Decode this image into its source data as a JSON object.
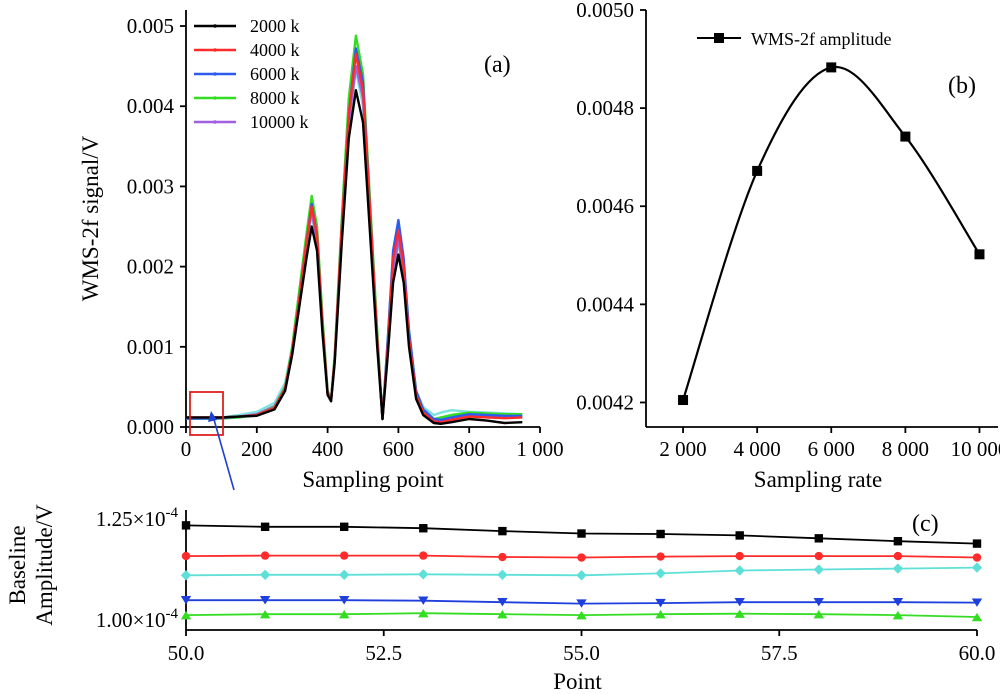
{
  "chart_data": [
    {
      "panel": "(a)",
      "type": "line",
      "xlabel": "Sampling point",
      "ylabel": "WMS-2f signal/V",
      "xlim": [
        0,
        1000
      ],
      "ylim": [
        0,
        0.0052
      ],
      "xticks": [
        0,
        200,
        400,
        600,
        800,
        1000
      ],
      "xtick_labels": [
        "0",
        "200",
        "400",
        "600",
        "800",
        "1 000"
      ],
      "yticks": [
        0,
        0.001,
        0.002,
        0.003,
        0.004,
        0.005
      ],
      "ytick_labels": [
        "0.000",
        "0.001",
        "0.002",
        "0.003",
        "0.004",
        "0.005"
      ],
      "legend_position": "top-left",
      "series": [
        {
          "name": "2000 k",
          "color": "#000000",
          "x": [
            0,
            50,
            100,
            150,
            200,
            250,
            280,
            300,
            320,
            340,
            355,
            370,
            385,
            400,
            410,
            420,
            440,
            460,
            480,
            500,
            520,
            540,
            555,
            570,
            585,
            600,
            615,
            630,
            650,
            670,
            700,
            720,
            750,
            800,
            850,
            900,
            950
          ],
          "y": [
            0.00012,
            0.00012,
            0.00012,
            0.00013,
            0.00014,
            0.00022,
            0.00045,
            0.0009,
            0.0015,
            0.0021,
            0.0025,
            0.0022,
            0.0012,
            0.0004,
            0.00032,
            0.0008,
            0.0023,
            0.0036,
            0.0042,
            0.0038,
            0.0024,
            0.001,
            0.0001,
            0.0009,
            0.0018,
            0.00215,
            0.0018,
            0.001,
            0.00035,
            0.00015,
            5e-05,
            4e-05,
            6e-05,
            0.0001,
            8e-05,
            5e-05,
            6e-05
          ]
        },
        {
          "name": "4000 k",
          "color": "#ff2a2a",
          "x": [
            0,
            50,
            100,
            150,
            200,
            250,
            280,
            300,
            320,
            340,
            355,
            370,
            385,
            400,
            410,
            420,
            440,
            460,
            480,
            500,
            520,
            540,
            555,
            570,
            585,
            600,
            615,
            630,
            650,
            670,
            700,
            720,
            750,
            800,
            850,
            900,
            950
          ],
          "y": [
            0.00012,
            0.00012,
            0.00012,
            0.00013,
            0.00015,
            0.00024,
            0.00048,
            0.00095,
            0.0016,
            0.0023,
            0.00275,
            0.0024,
            0.0013,
            0.00042,
            0.00034,
            0.00085,
            0.0025,
            0.0039,
            0.00465,
            0.0042,
            0.0027,
            0.0011,
            0.0001,
            0.001,
            0.0021,
            0.00245,
            0.002,
            0.0011,
            0.0004,
            0.00018,
            7e-05,
            6e-05,
            9e-05,
            0.00013,
            0.00012,
            0.00011,
            0.00012
          ]
        },
        {
          "name": "6000 k",
          "color": "#2d5bf0",
          "x": [
            0,
            50,
            100,
            150,
            200,
            250,
            280,
            300,
            320,
            340,
            355,
            370,
            385,
            400,
            410,
            420,
            440,
            460,
            480,
            500,
            520,
            540,
            555,
            570,
            585,
            600,
            615,
            630,
            650,
            670,
            700,
            720,
            750,
            800,
            850,
            900,
            950
          ],
          "y": [
            0.000105,
            0.000105,
            0.00011,
            0.00013,
            0.00015,
            0.00024,
            0.00048,
            0.00095,
            0.0016,
            0.0023,
            0.00278,
            0.0024,
            0.0013,
            0.00042,
            0.00034,
            0.00085,
            0.0025,
            0.0039,
            0.00472,
            0.0043,
            0.0027,
            0.0011,
            0.0001,
            0.0011,
            0.0022,
            0.00258,
            0.0021,
            0.0012,
            0.00045,
            0.00022,
            0.0001,
            9e-05,
            0.00012,
            0.00016,
            0.00015,
            0.00014,
            0.00014
          ]
        },
        {
          "name": "8000 k",
          "color": "#33dd22",
          "x": [
            0,
            50,
            100,
            150,
            200,
            250,
            280,
            300,
            320,
            340,
            355,
            370,
            385,
            400,
            410,
            420,
            440,
            460,
            480,
            500,
            520,
            540,
            555,
            570,
            585,
            600,
            615,
            630,
            650,
            670,
            700,
            720,
            750,
            800,
            850,
            900,
            950
          ],
          "y": [
            0.000104,
            0.000104,
            0.000105,
            0.00012,
            0.00015,
            0.00025,
            0.0005,
            0.001,
            0.0017,
            0.0024,
            0.00288,
            0.0025,
            0.0014,
            0.00045,
            0.00035,
            0.0009,
            0.0026,
            0.0041,
            0.00488,
            0.0044,
            0.0028,
            0.0012,
            0.0001,
            0.0011,
            0.0021,
            0.0025,
            0.002,
            0.0012,
            0.00045,
            0.00022,
            0.0001,
            0.00012,
            0.00015,
            0.00018,
            0.00017,
            0.00016,
            0.00016
          ]
        },
        {
          "name": "10000 k",
          "color": "#a060e0",
          "x": [
            0,
            50,
            100,
            150,
            200,
            250,
            280,
            300,
            320,
            340,
            355,
            370,
            385,
            400,
            410,
            420,
            440,
            460,
            480,
            500,
            520,
            540,
            555,
            570,
            585,
            600,
            615,
            630,
            650,
            670,
            700,
            720,
            750,
            800,
            850,
            900,
            950
          ],
          "y": [
            0.000114,
            0.000114,
            0.000115,
            0.00013,
            0.00016,
            0.00026,
            0.0005,
            0.00095,
            0.0016,
            0.0023,
            0.0027,
            0.0023,
            0.0013,
            0.00042,
            0.00034,
            0.00085,
            0.0025,
            0.0038,
            0.0045,
            0.0041,
            0.0026,
            0.0011,
            0.0001,
            0.001,
            0.0019,
            0.00235,
            0.0019,
            0.0011,
            0.0004,
            0.00018,
            9e-05,
            8e-05,
            0.00011,
            0.00015,
            0.00014,
            0.00013,
            0.00013
          ]
        },
        {
          "name": "",
          "color": "#7fe0e0",
          "x": [
            0,
            50,
            100,
            150,
            200,
            250,
            280,
            300,
            320,
            340,
            355,
            370,
            385,
            400,
            410,
            420,
            440,
            460,
            480,
            500,
            520,
            540,
            555,
            570,
            585,
            600,
            615,
            630,
            650,
            670,
            700,
            720,
            750,
            800,
            850,
            900,
            950
          ],
          "y": [
            0.000114,
            0.000114,
            0.00012,
            0.00015,
            0.00019,
            0.0003,
            0.00055,
            0.001,
            0.0017,
            0.0023,
            0.00265,
            0.0023,
            0.0013,
            0.00045,
            0.00036,
            0.00085,
            0.0024,
            0.0037,
            0.00445,
            0.004,
            0.0026,
            0.0011,
            0.00012,
            0.001,
            0.0019,
            0.0023,
            0.0019,
            0.0011,
            0.00045,
            0.00025,
            0.00015,
            0.00018,
            0.00021,
            0.00019,
            0.00018,
            0.00017,
            0.00016
          ]
        }
      ]
    },
    {
      "panel": "(b)",
      "type": "line",
      "xlabel": "Sampling rate",
      "ylabel": "",
      "xlim": [
        1000,
        10500
      ],
      "ylim": [
        0.00415,
        0.005
      ],
      "xticks": [
        2000,
        4000,
        6000,
        8000,
        10000
      ],
      "xtick_labels": [
        "2 000",
        "4 000",
        "6 000",
        "8 000",
        "10 000"
      ],
      "yticks": [
        0.0042,
        0.0044,
        0.0046,
        0.0048,
        0.005
      ],
      "ytick_labels": [
        "0.0042",
        "0.0044",
        "0.0046",
        "0.0048",
        "0.0050"
      ],
      "legend_position": "top-left",
      "legend_label": "WMS-2f amplitude",
      "series": [
        {
          "name": "WMS-2f amplitude",
          "color": "#000000",
          "x": [
            2000,
            4000,
            6000,
            8000,
            10000
          ],
          "y": [
            0.004205,
            0.004672,
            0.004883,
            0.004742,
            0.004502
          ]
        }
      ]
    },
    {
      "panel": "(c)",
      "type": "line",
      "xlabel": "Point",
      "ylabel": "Baseline Amplitude/V",
      "xlim": [
        50,
        60
      ],
      "ylim": [
        0.000101,
        0.000126
      ],
      "xticks": [
        50,
        52.5,
        55,
        57.5,
        60
      ],
      "xtick_labels": [
        "50.0",
        "52.5",
        "55.0",
        "57.5",
        "60.0"
      ],
      "ytick_labels": [
        "1.25×10-4",
        "1.00×10-4"
      ],
      "series": [
        {
          "name": "",
          "color": "#000000",
          "marker": "square",
          "x": [
            50,
            51,
            52,
            53,
            54,
            55,
            56,
            57,
            58,
            59,
            60
          ],
          "y": [
            0.0001228,
            0.0001225,
            0.0001225,
            0.0001222,
            0.0001216,
            0.0001211,
            0.000121,
            0.0001207,
            0.0001201,
            0.0001195,
            0.000119
          ]
        },
        {
          "name": "",
          "color": "#ff2a2a",
          "marker": "circle",
          "x": [
            50,
            51,
            52,
            53,
            54,
            55,
            56,
            57,
            58,
            59,
            60
          ],
          "y": [
            0.0001164,
            0.0001165,
            0.0001165,
            0.0001165,
            0.0001162,
            0.0001161,
            0.0001163,
            0.0001164,
            0.0001164,
            0.0001164,
            0.0001161
          ]
        },
        {
          "name": "",
          "color": "#5ee0d8",
          "marker": "diamond",
          "x": [
            50,
            51,
            52,
            53,
            54,
            55,
            56,
            57,
            58,
            59,
            60
          ],
          "y": [
            0.0001124,
            0.0001125,
            0.0001125,
            0.0001126,
            0.0001125,
            0.0001124,
            0.0001128,
            0.0001134,
            0.0001136,
            0.0001138,
            0.000114
          ]
        },
        {
          "name": "",
          "color": "#1f3fdd",
          "marker": "triangle-down",
          "x": [
            50,
            51,
            52,
            53,
            54,
            55,
            56,
            57,
            58,
            59,
            60
          ],
          "y": [
            0.0001072,
            0.0001072,
            0.0001072,
            0.0001071,
            0.0001068,
            0.0001065,
            0.0001066,
            0.0001068,
            0.0001068,
            0.0001068,
            0.0001067
          ]
        },
        {
          "name": "",
          "color": "#33dd22",
          "marker": "triangle-up",
          "x": [
            50,
            51,
            52,
            53,
            54,
            55,
            56,
            57,
            58,
            59,
            60
          ],
          "y": [
            0.0001041,
            0.0001043,
            0.0001043,
            0.0001045,
            0.0001043,
            0.0001041,
            0.0001043,
            0.0001044,
            0.0001043,
            0.0001041,
            0.0001037
          ]
        }
      ]
    }
  ]
}
